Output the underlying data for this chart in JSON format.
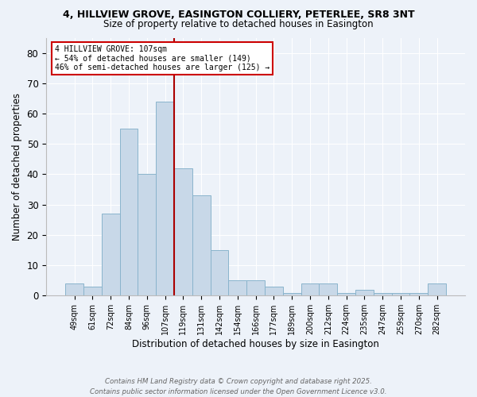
{
  "title_line1": "4, HILLVIEW GROVE, EASINGTON COLLIERY, PETERLEE, SR8 3NT",
  "title_line2": "Size of property relative to detached houses in Easington",
  "xlabel": "Distribution of detached houses by size in Easington",
  "ylabel": "Number of detached properties",
  "categories": [
    "49sqm",
    "61sqm",
    "72sqm",
    "84sqm",
    "96sqm",
    "107sqm",
    "119sqm",
    "131sqm",
    "142sqm",
    "154sqm",
    "166sqm",
    "177sqm",
    "189sqm",
    "200sqm",
    "212sqm",
    "224sqm",
    "235sqm",
    "247sqm",
    "259sqm",
    "270sqm",
    "282sqm"
  ],
  "values": [
    4,
    3,
    27,
    55,
    40,
    64,
    42,
    33,
    15,
    5,
    5,
    3,
    1,
    4,
    4,
    1,
    2,
    1,
    1,
    1,
    4
  ],
  "bar_color": "#c8d8e8",
  "bar_edge_color": "#8ab4cc",
  "marker_index": 5,
  "marker_line_color": "#aa0000",
  "annotation_line1": "4 HILLVIEW GROVE: 107sqm",
  "annotation_line2": "← 54% of detached houses are smaller (149)",
  "annotation_line3": "46% of semi-detached houses are larger (125) →",
  "annotation_box_color": "#ffffff",
  "annotation_box_edge": "#cc0000",
  "ylim": [
    0,
    85
  ],
  "yticks": [
    0,
    10,
    20,
    30,
    40,
    50,
    60,
    70,
    80
  ],
  "footer_line1": "Contains HM Land Registry data © Crown copyright and database right 2025.",
  "footer_line2": "Contains public sector information licensed under the Open Government Licence v3.0.",
  "background_color": "#edf2f9"
}
